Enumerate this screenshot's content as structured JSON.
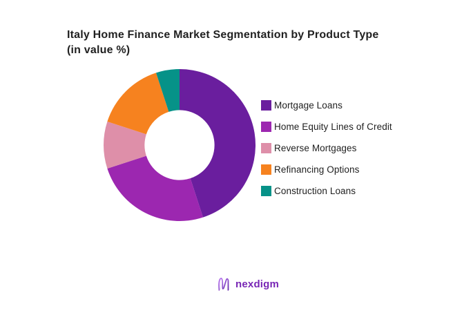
{
  "header": {
    "title_line1": "Italy Home Finance Market Segmentation by Product Type",
    "title_line2": "(in value %)"
  },
  "chart_data": {
    "type": "pie",
    "subtype": "donut",
    "title": "Italy Home Finance Market Segmentation by Product Type (in value %)",
    "units": "value %",
    "start_angle_deg": 0,
    "direction": "clockwise",
    "inner_radius_ratio": 0.46,
    "legend_position": "right",
    "data_labels_shown": false,
    "segments": [
      {
        "label": "Mortgage Loans",
        "value": 45,
        "color": "#6A1E9E"
      },
      {
        "label": "Home Equity Lines of Credit",
        "value": 25,
        "color": "#9C27B0"
      },
      {
        "label": "Reverse Mortgages",
        "value": 10,
        "color": "#DE8FA9"
      },
      {
        "label": "Refinancing Options",
        "value": 15,
        "color": "#F6821F"
      },
      {
        "label": "Construction Loans",
        "value": 5,
        "color": "#069288"
      }
    ]
  },
  "footer": {
    "logo_text": "nexdigm",
    "logo_color": "#7826B5"
  }
}
